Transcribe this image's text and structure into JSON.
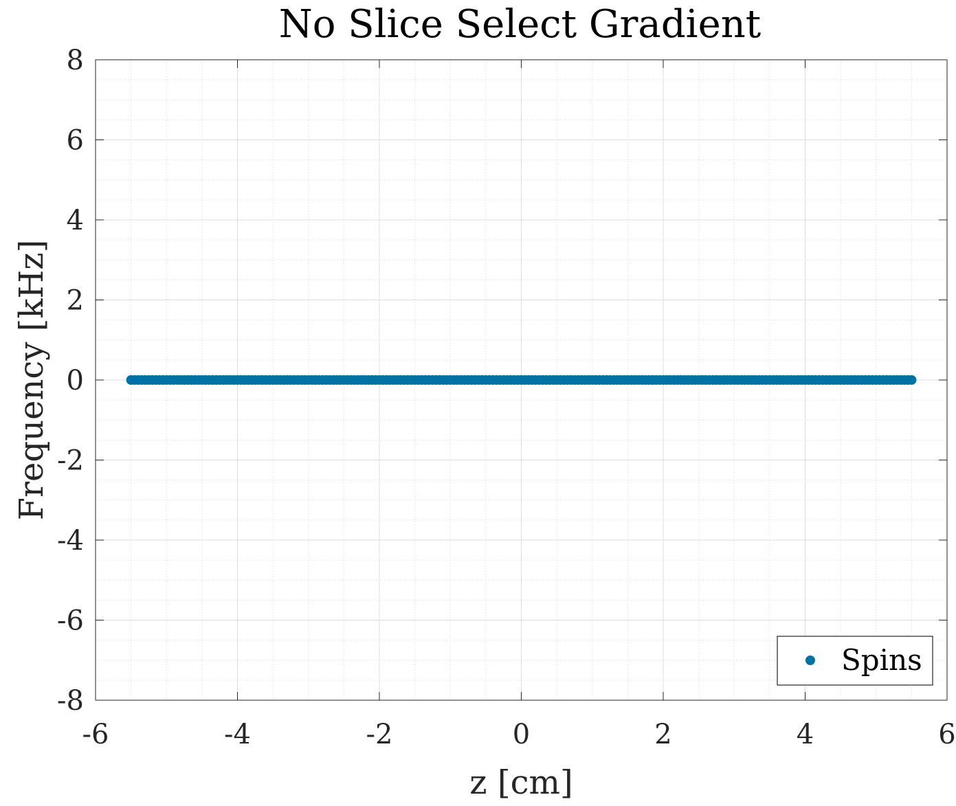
{
  "chart_data": {
    "type": "scatter",
    "title": "No Slice Select Gradient",
    "xlabel": "z [cm]",
    "ylabel": "Frequency [kHz]",
    "xlim": [
      -6,
      6
    ],
    "ylim": [
      -8,
      8
    ],
    "xticks": [
      -6,
      -4,
      -2,
      0,
      2,
      4,
      6
    ],
    "yticks": [
      -8,
      -6,
      -4,
      -2,
      0,
      2,
      4,
      6,
      8
    ],
    "xtick_labels": [
      "-6",
      "-4",
      "-2",
      "0",
      "2",
      "4",
      "6"
    ],
    "ytick_labels": [
      "-8",
      "-6",
      "-4",
      "-2",
      "0",
      "2",
      "4",
      "6",
      "8"
    ],
    "grid": true,
    "minor_grid": true,
    "legend_position": "bottom-right",
    "series": [
      {
        "name": "Spins",
        "color": "#0072a4",
        "marker": "filled-circle",
        "x_range": [
          -5.5,
          5.5
        ],
        "num_points": 221,
        "y_value": 0
      }
    ]
  }
}
